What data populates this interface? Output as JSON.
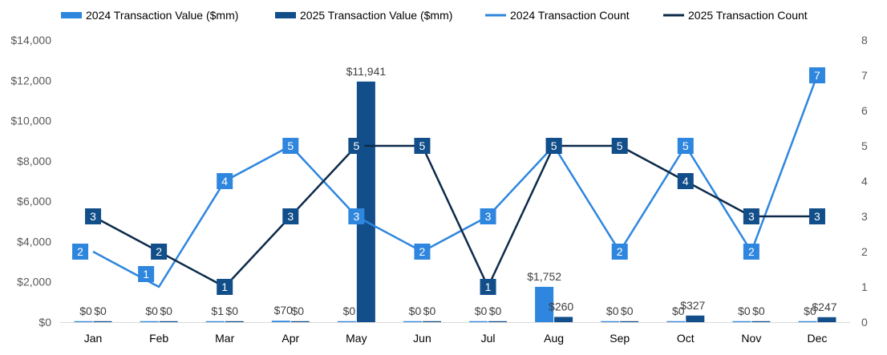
{
  "chart_data": {
    "type": "bar",
    "title": "",
    "categories": [
      "Jan",
      "Feb",
      "Mar",
      "Apr",
      "May",
      "Jun",
      "Jul",
      "Aug",
      "Sep",
      "Oct",
      "Nov",
      "Dec"
    ],
    "series": [
      {
        "name": "2024 Transaction Value ($mm)",
        "kind": "bar",
        "axis": "left",
        "color": "#2E86DE",
        "values": [
          0,
          0,
          1,
          70,
          0,
          0,
          0,
          1752,
          0,
          0,
          0,
          0
        ],
        "labels": [
          "$0",
          "$0",
          "$1",
          "$70",
          "$0",
          "$0",
          "$0",
          "$1,752",
          "$0",
          "$0",
          "$0",
          "$0"
        ]
      },
      {
        "name": "2025 Transaction Value ($mm)",
        "kind": "bar",
        "axis": "left",
        "color": "#114E8A",
        "values": [
          0,
          0,
          0,
          0,
          11941,
          0,
          0,
          260,
          0,
          327,
          0,
          247
        ],
        "labels": [
          "$0",
          "$0",
          "$0",
          "$0",
          "$11,941",
          "$0",
          "$0",
          "$260",
          "$0",
          "$327",
          "$0",
          "$247"
        ]
      },
      {
        "name": "2024 Transaction Count",
        "kind": "line",
        "axis": "right",
        "color": "#2E86DE",
        "values": [
          2,
          1,
          4,
          5,
          3,
          2,
          3,
          5,
          2,
          5,
          2,
          7
        ],
        "labels": [
          "2",
          "1",
          "4",
          "5",
          "3",
          "2",
          "3",
          "5",
          "2",
          "5",
          "2",
          "7"
        ]
      },
      {
        "name": "2025 Transaction Count",
        "kind": "line",
        "axis": "right",
        "color": "#0D2A4A",
        "marker_color": "#114E8A",
        "values": [
          3,
          2,
          1,
          3,
          5,
          5,
          1,
          5,
          5,
          4,
          3,
          3
        ],
        "labels": [
          "3",
          "2",
          "1",
          "3",
          "5",
          "5",
          "1",
          "5",
          "5",
          "4",
          "3",
          "3"
        ]
      }
    ],
    "y_left": {
      "range": [
        0,
        14000
      ],
      "step": 2000,
      "tick_labels": [
        "$0",
        "$2,000",
        "$4,000",
        "$6,000",
        "$8,000",
        "$10,000",
        "$12,000",
        "$14,000"
      ]
    },
    "y_right": {
      "range": [
        0,
        8
      ],
      "step": 1,
      "tick_labels": [
        "0",
        "1",
        "2",
        "3",
        "4",
        "5",
        "6",
        "7",
        "8"
      ]
    },
    "xlabel": "",
    "ylabel": "",
    "grid": false,
    "legend": "top"
  }
}
